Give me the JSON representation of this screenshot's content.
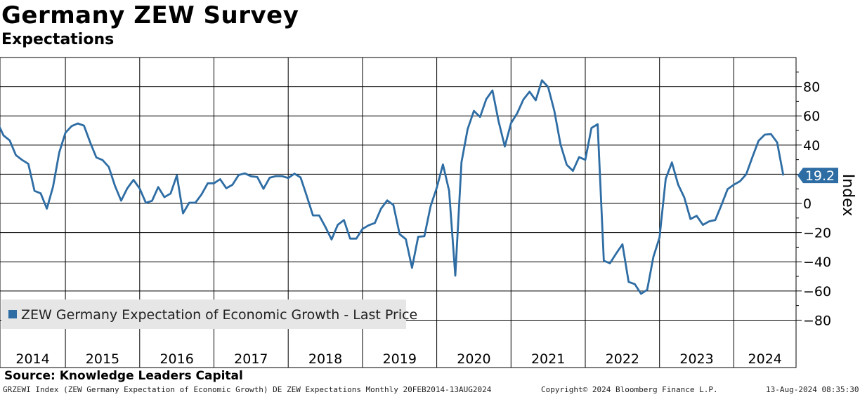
{
  "header": {
    "title": "Germany ZEW Survey",
    "subtitle": "Expectations"
  },
  "footer": {
    "source": "Source: Knowledge Leaders Capital",
    "ticker_info": "GRZEWI Index (ZEW Germany Expectation of Economic Growth) DE ZEW Expectations  Monthly 20FEB2014-13AUG2024",
    "copyright": "Copyright© 2024 Bloomberg Finance L.P.",
    "timestamp": "13-Aug-2024 08:35:30"
  },
  "colors": {
    "series": "#2e6da4",
    "grid": "#000000",
    "legend_bg": "#e6e6e6"
  },
  "chart_data": {
    "type": "line",
    "title": "Germany ZEW Survey",
    "subtitle": "Expectations",
    "ylabel": "Index",
    "xlabel": "",
    "ylim": [
      -87,
      100
    ],
    "yticks": [
      -80,
      -60,
      -40,
      -20,
      0,
      20,
      40,
      60,
      80
    ],
    "year_labels": [
      "2014",
      "2015",
      "2016",
      "2017",
      "2018",
      "2019",
      "2020",
      "2021",
      "2022",
      "2023",
      "2024"
    ],
    "start_year": 2014,
    "start_month": 2,
    "last_value_label": "19.2",
    "legend": "ZEW Germany Expectation of Economic Growth - Last Price",
    "series": [
      {
        "name": "ZEW Germany Expectation of Economic Growth - Last Price",
        "values": [
          55.7,
          46.6,
          43.2,
          33.1,
          29.8,
          27.1,
          8.6,
          6.9,
          -3.6,
          11.5,
          34.9,
          48.4,
          53.0,
          54.8,
          53.3,
          41.9,
          31.5,
          29.7,
          25.0,
          12.1,
          1.9,
          10.4,
          16.1,
          10.2,
          0.4,
          1.8,
          11.2,
          4.3,
          6.8,
          19.2,
          -6.8,
          0.5,
          0.5,
          6.2,
          13.8,
          13.8,
          16.6,
          10.4,
          12.8,
          19.5,
          20.6,
          18.6,
          18.1,
          10.0,
          17.6,
          18.7,
          18.7,
          17.4,
          20.4,
          17.8,
          5.1,
          -8.2,
          -8.2,
          -16.1,
          -24.7,
          -14.7,
          -11.4,
          -24.1,
          -24.1,
          -17.5,
          -15.0,
          -13.4,
          -3.6,
          2.1,
          -1.1,
          -21.1,
          -24.5,
          -44.1,
          -22.8,
          -22.5,
          -2.0,
          10.7,
          26.7,
          8.7,
          -49.5,
          28.2,
          51.0,
          63.4,
          59.3,
          71.5,
          77.4,
          56.1,
          39.0,
          55.0,
          61.8,
          71.2,
          76.6,
          70.7,
          84.4,
          79.8,
          63.3,
          40.4,
          26.5,
          22.3,
          31.7,
          29.9,
          51.7,
          54.3,
          -39.3,
          -41.0,
          -34.3,
          -28.0,
          -53.8,
          -55.3,
          -61.9,
          -59.2,
          -36.7,
          -23.3,
          16.9,
          28.1,
          13.0,
          4.1,
          -10.7,
          -8.5,
          -14.7,
          -12.3,
          -11.4,
          -1.1,
          9.8,
          12.8,
          15.2,
          19.9,
          31.7,
          42.9,
          47.1,
          47.5,
          41.8,
          19.2
        ]
      }
    ]
  }
}
